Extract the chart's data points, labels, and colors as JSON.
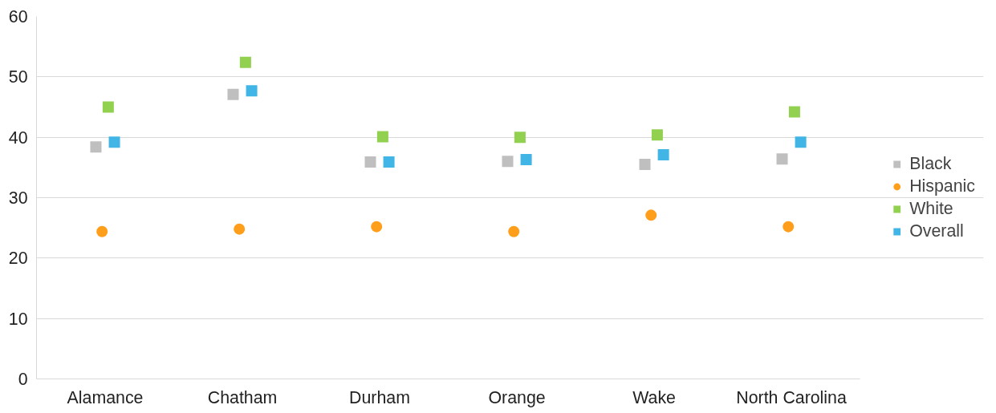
{
  "chart_data": {
    "type": "scatter",
    "categories": [
      "Alamance",
      "Chatham",
      "Durham",
      "Orange",
      "Wake",
      "North Carolina"
    ],
    "series": [
      {
        "name": "Black",
        "color": "#bfbfbf",
        "marker": "square",
        "values": [
          38.4,
          47.1,
          35.9,
          36.0,
          35.5,
          36.4
        ]
      },
      {
        "name": "Hispanic",
        "color": "#ff9e1b",
        "marker": "circle",
        "values": [
          24.4,
          24.8,
          25.2,
          24.4,
          27.1,
          25.2
        ]
      },
      {
        "name": "White",
        "color": "#92d050",
        "marker": "square",
        "values": [
          45.0,
          52.4,
          40.1,
          40.0,
          40.4,
          44.2
        ]
      },
      {
        "name": "Overall",
        "color": "#41b6e6",
        "marker": "square",
        "values": [
          39.2,
          47.7,
          35.9,
          36.3,
          37.1,
          39.2
        ]
      }
    ],
    "ylim": [
      0,
      60
    ],
    "yticks": [
      0,
      10,
      20,
      30,
      40,
      50,
      60
    ],
    "grid": "y",
    "legend": "right"
  }
}
